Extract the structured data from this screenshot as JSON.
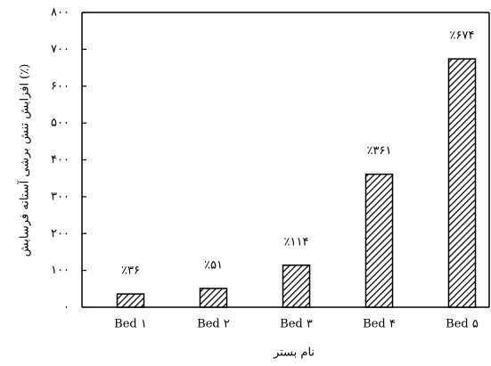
{
  "chart_data": {
    "type": "bar",
    "y_label": "افزایش تنش برشی آستانه فرسایش (٪)",
    "x_label": "نام بستر",
    "categories": [
      "Bed ۱",
      "Bed ۲",
      "Bed ۳",
      "Bed ۴",
      "Bed ۵"
    ],
    "values": [
      36,
      51,
      114,
      361,
      674
    ],
    "value_labels": [
      "٪۳۶",
      "٪۵۱",
      "٪۱۱۴",
      "٪۳۶۱",
      "٪۶۷۴"
    ],
    "color": "#000000",
    "ylim": [
      0,
      800
    ],
    "yticks": [
      {
        "value": 0,
        "label": "۰"
      },
      {
        "value": 100,
        "label": "۱۰۰"
      },
      {
        "value": 200,
        "label": "۲۰۰"
      },
      {
        "value": 300,
        "label": "۳۰۰"
      },
      {
        "value": 400,
        "label": "۴۰۰"
      },
      {
        "value": 500,
        "label": "۵۰۰"
      },
      {
        "value": 600,
        "label": "۶۰۰"
      },
      {
        "value": 700,
        "label": "۷۰۰"
      },
      {
        "value": 800,
        "label": "۸۰۰"
      }
    ]
  }
}
